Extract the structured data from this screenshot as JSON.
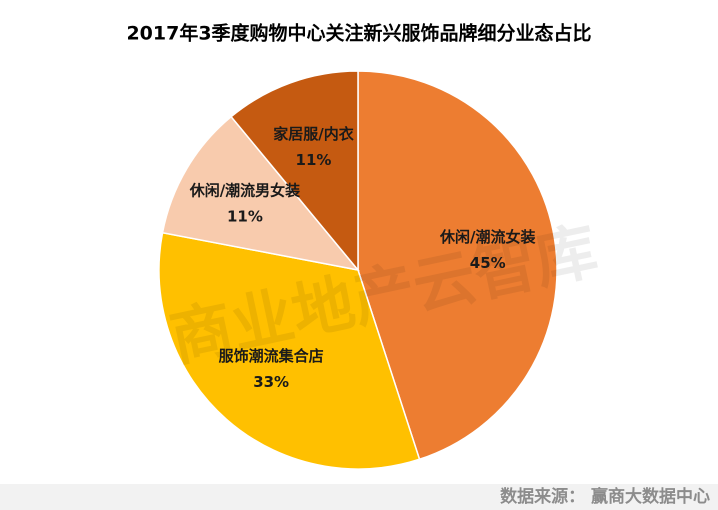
{
  "chart_data": {
    "type": "pie",
    "title": "2017年3季度购物中心关注新兴服饰品牌细分业态占比",
    "categories": [
      "休闲/潮流女装",
      "服饰潮流集合店",
      "休闲/潮流男女装",
      "家居服/内衣"
    ],
    "values": [
      45,
      33,
      11,
      11
    ],
    "value_labels": [
      "45%",
      "33%",
      "11%",
      "11%"
    ],
    "colors": [
      "#ED7D31",
      "#FFC000",
      "#F8CBAD",
      "#C55A11"
    ],
    "watermark": "商业地产云智库",
    "source": "数据来源： 赢商大数据中心"
  }
}
